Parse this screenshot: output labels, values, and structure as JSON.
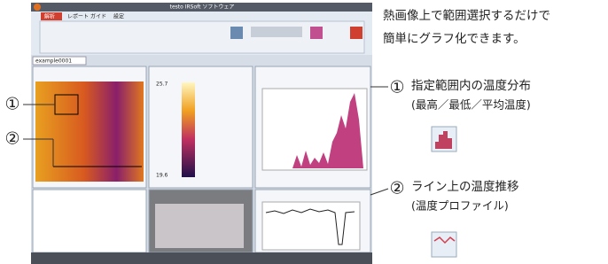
{
  "app": {
    "title": "testo IRSoft ソフトウェア",
    "tabs": [
      "解析",
      "レポート",
      "ガイド",
      "設定"
    ],
    "document_tab": "example0001",
    "scale_max": "25.7",
    "scale_min": "19.6"
  },
  "description": [
    "熱画像上で範囲選択するだけで",
    "簡単にグラフ化できます。"
  ],
  "callouts": [
    {
      "number": "①",
      "label": "指定範囲内の温度分布",
      "sub": "(最高／最低／平均温度)"
    },
    {
      "number": "②",
      "label": "ライン上の温度推移",
      "sub": "(温度プロファイル)"
    }
  ]
}
